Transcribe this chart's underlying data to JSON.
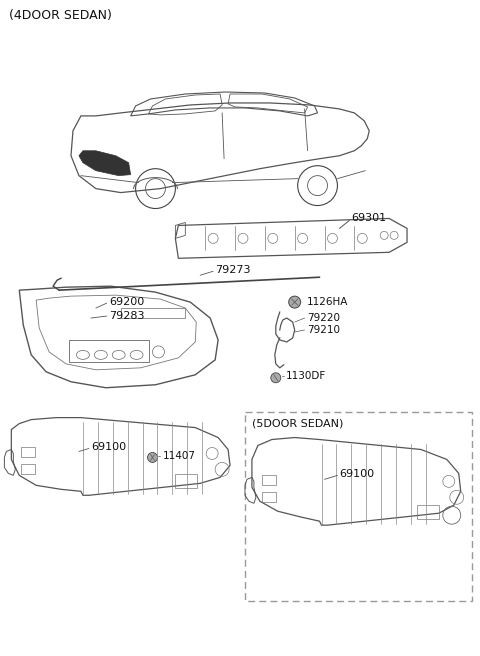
{
  "bg_color": "#ffffff",
  "fig_width": 4.8,
  "fig_height": 6.56,
  "dpi": 100,
  "header": "(4DOOR SEDAN)",
  "sub_header": "(5DOOR SEDAN)",
  "text_color": "#222222",
  "line_color": "#555555",
  "label_color": "#111111"
}
